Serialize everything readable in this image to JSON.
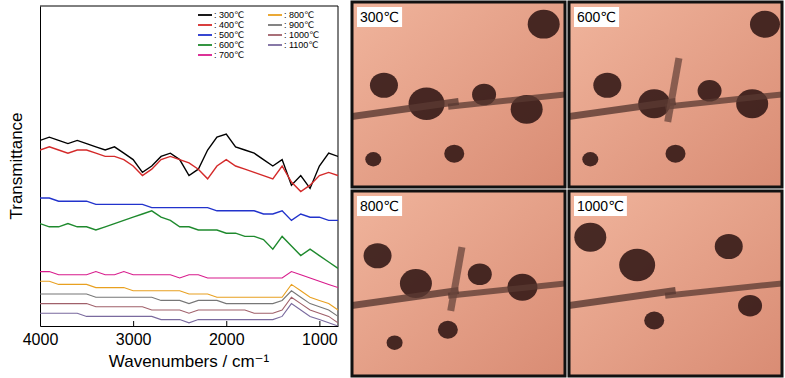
{
  "chart_data": {
    "type": "line",
    "x_label": "Wavenumbers / cm⁻¹",
    "y_label": "Transmittance",
    "x": [
      4000,
      3900,
      3800,
      3700,
      3600,
      3500,
      3400,
      3300,
      3200,
      3100,
      3000,
      2900,
      2800,
      2700,
      2600,
      2500,
      2400,
      2300,
      2200,
      2100,
      2000,
      1900,
      1800,
      1700,
      1600,
      1500,
      1400,
      1300,
      1200,
      1100,
      1000,
      900,
      800
    ],
    "xlim": [
      4000,
      800
    ],
    "xticks": [
      4000,
      3000,
      2000,
      1000
    ],
    "ylim": [
      0,
      100
    ],
    "yticks": [],
    "tick_labels": "x",
    "legend": "top-right",
    "series": [
      {
        "name": ": 300℃",
        "color": "#000000",
        "values": [
          58,
          59,
          58,
          57,
          58,
          57,
          56,
          55,
          56,
          54,
          52,
          48,
          50,
          53,
          54,
          52,
          47,
          49,
          55,
          59,
          60,
          56,
          55,
          54,
          52,
          50,
          52,
          44,
          47,
          43,
          50,
          54,
          53
        ]
      },
      {
        "name": ": 400℃",
        "color": "#d42a2a",
        "values": [
          55,
          56,
          55,
          54,
          55,
          55,
          54,
          53,
          53,
          52,
          50,
          47,
          49,
          52,
          53,
          52,
          51,
          49,
          46,
          50,
          52,
          50,
          49,
          48,
          47,
          46,
          50,
          45,
          42,
          44,
          47,
          48,
          47
        ]
      },
      {
        "name": ": 500℃",
        "color": "#2233cc",
        "values": [
          40,
          40,
          39,
          39,
          39,
          39,
          38,
          38,
          38,
          38,
          38,
          38,
          37,
          37,
          37,
          37,
          37,
          37,
          37,
          36,
          36,
          36,
          36,
          36,
          35,
          35,
          36,
          33,
          35,
          34,
          34,
          33,
          33
        ]
      },
      {
        "name": ": 600℃",
        "color": "#1f8a2e",
        "values": [
          32,
          31,
          31,
          32,
          31,
          31,
          30,
          31,
          32,
          33,
          34,
          35,
          36,
          34,
          33,
          31,
          31,
          30,
          30,
          30,
          29,
          29,
          28,
          28,
          27,
          24,
          28,
          25,
          22,
          24,
          22,
          20,
          18
        ]
      },
      {
        "name": ": 700℃",
        "color": "#d81b8c",
        "values": [
          17,
          17,
          16,
          16,
          16,
          16,
          17,
          16,
          16,
          17,
          16,
          16,
          16,
          16,
          16,
          15,
          16,
          16,
          15,
          15,
          15,
          15,
          15,
          15,
          15,
          15,
          15,
          17,
          16,
          15,
          14,
          13,
          12
        ]
      },
      {
        "name": ": 800℃",
        "color": "#e8a020",
        "values": [
          14,
          14,
          13,
          13,
          13,
          13,
          12,
          12,
          12,
          12,
          11,
          11,
          11,
          11,
          11,
          11,
          10,
          10,
          10,
          9,
          9,
          9,
          9,
          9,
          9,
          9,
          9,
          13,
          11,
          9,
          8,
          7,
          5
        ]
      },
      {
        "name": ": 900℃",
        "color": "#777777",
        "values": [
          10,
          10,
          10,
          10,
          10,
          10,
          9,
          9,
          9,
          9,
          9,
          9,
          9,
          8,
          8,
          8,
          7,
          8,
          8,
          8,
          7,
          7,
          7,
          7,
          7,
          7,
          8,
          11,
          9,
          7,
          6,
          5,
          3
        ]
      },
      {
        "name": ": 1000℃",
        "color": "#a0606a",
        "values": [
          7,
          7,
          7,
          7,
          7,
          7,
          6,
          6,
          6,
          6,
          6,
          6,
          5,
          5,
          5,
          5,
          4,
          5,
          5,
          5,
          5,
          5,
          5,
          4,
          4,
          4,
          5,
          9,
          7,
          5,
          4,
          3,
          1
        ]
      },
      {
        "name": ": 1100℃",
        "color": "#7a6a9e",
        "values": [
          4,
          4,
          4,
          4,
          4,
          3,
          3,
          3,
          3,
          3,
          3,
          3,
          3,
          2,
          2,
          2,
          1,
          2,
          2,
          2,
          2,
          2,
          2,
          2,
          2,
          2,
          3,
          7,
          5,
          3,
          2,
          1,
          0
        ]
      }
    ]
  },
  "images": [
    {
      "label": "300℃"
    },
    {
      "label": "600℃"
    },
    {
      "label": "800℃"
    },
    {
      "label": "1000℃"
    }
  ]
}
